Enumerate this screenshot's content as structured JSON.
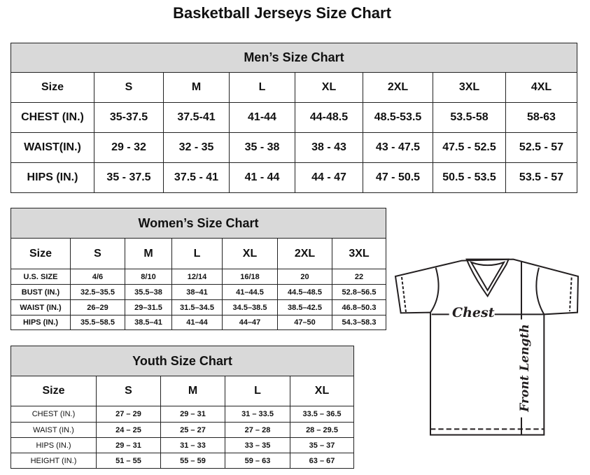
{
  "title": "Basketball Jerseys Size Chart",
  "men": {
    "heading": "Men’s Size Chart",
    "rows": [
      [
        "Size",
        "S",
        "M",
        "L",
        "XL",
        "2XL",
        "3XL",
        "4XL"
      ],
      [
        "CHEST (IN.)",
        "35-37.5",
        "37.5-41",
        "41-44",
        "44-48.5",
        "48.5-53.5",
        "53.5-58",
        "58-63"
      ],
      [
        "WAIST(IN.)",
        "29 - 32",
        "32 - 35",
        "35 - 38",
        "38 - 43",
        "43 - 47.5",
        "47.5 - 52.5",
        "52.5 - 57"
      ],
      [
        "HIPS (IN.)",
        "35 - 37.5",
        "37.5 - 41",
        "41 - 44",
        "44 - 47",
        "47 - 50.5",
        "50.5 - 53.5",
        "53.5 - 57"
      ]
    ]
  },
  "women": {
    "heading": "Women’s Size Chart",
    "rows": [
      [
        "Size",
        "S",
        "M",
        "L",
        "XL",
        "2XL",
        "3XL"
      ],
      [
        "U.S. SIZE",
        "4/6",
        "8/10",
        "12/14",
        "16/18",
        "20",
        "22"
      ],
      [
        "BUST (IN.)",
        "32.5–35.5",
        "35.5–38",
        "38–41",
        "41–44.5",
        "44.5–48.5",
        "52.8–56.5"
      ],
      [
        "WAIST (IN.)",
        "26–29",
        "29–31.5",
        "31.5–34.5",
        "34.5–38.5",
        "38.5–42.5",
        "46.8–50.3"
      ],
      [
        "HIPS (IN.)",
        "35.5–58.5",
        "38.5–41",
        "41–44",
        "44–47",
        "47–50",
        "54.3–58.3"
      ]
    ]
  },
  "youth": {
    "heading": "Youth Size Chart",
    "rows": [
      [
        "Size",
        "S",
        "M",
        "L",
        "XL"
      ],
      [
        "CHEST (IN.)",
        "27 – 29",
        "29 – 31",
        "31 – 33.5",
        "33.5 – 36.5"
      ],
      [
        "WAIST (IN.)",
        "24 – 25",
        "25 – 27",
        "27 – 28",
        "28 – 29.5"
      ],
      [
        "HIPS (IN.)",
        "29 – 31",
        "31 – 33",
        "33 – 35",
        "35 – 37"
      ],
      [
        "HEIGHT (IN.)",
        "51 – 55",
        "55 – 59",
        "59 – 63",
        "63 – 67"
      ]
    ]
  },
  "diagram": {
    "chest_label": "Chest",
    "length_label": "Front Length",
    "icon": "t-shirt-diagram"
  }
}
